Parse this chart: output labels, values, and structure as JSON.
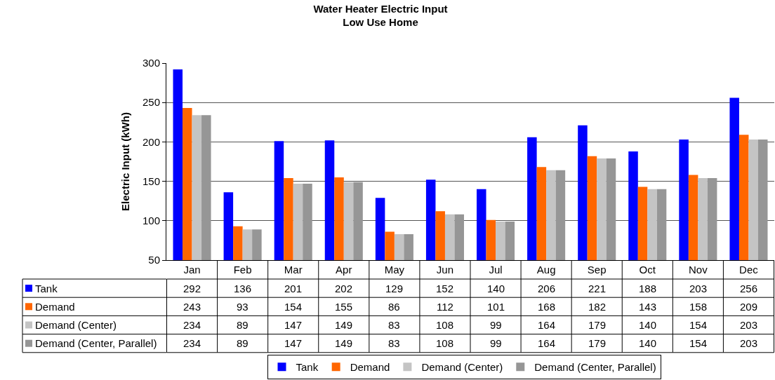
{
  "chart_data": {
    "type": "bar",
    "title": "Water Heater Electric Input",
    "subtitle": "Low Use Home",
    "ylabel": "Electric Input (kWh)",
    "categories": [
      "Jan",
      "Feb",
      "Mar",
      "Apr",
      "May",
      "Jun",
      "Jul",
      "Aug",
      "Sep",
      "Oct",
      "Nov",
      "Dec"
    ],
    "series": [
      {
        "name": "Tank",
        "color": "#0000ff",
        "values": [
          292,
          136,
          201,
          202,
          129,
          152,
          140,
          206,
          221,
          188,
          203,
          256
        ]
      },
      {
        "name": "Demand",
        "color": "#ff6600",
        "values": [
          243,
          93,
          154,
          155,
          86,
          112,
          101,
          168,
          182,
          143,
          158,
          209
        ]
      },
      {
        "name": "Demand (Center)",
        "color": "#c4c4c4",
        "values": [
          234,
          89,
          147,
          149,
          83,
          108,
          99,
          164,
          179,
          140,
          154,
          203
        ]
      },
      {
        "name": "Demand (Center, Parallel)",
        "color": "#969696",
        "values": [
          234,
          89,
          147,
          149,
          83,
          108,
          99,
          164,
          179,
          140,
          154,
          203
        ]
      }
    ],
    "ylim": [
      50,
      300
    ],
    "yticks": [
      50,
      100,
      150,
      200,
      250,
      300
    ],
    "grid": "y",
    "legend": "bottom",
    "data_labels": true
  }
}
